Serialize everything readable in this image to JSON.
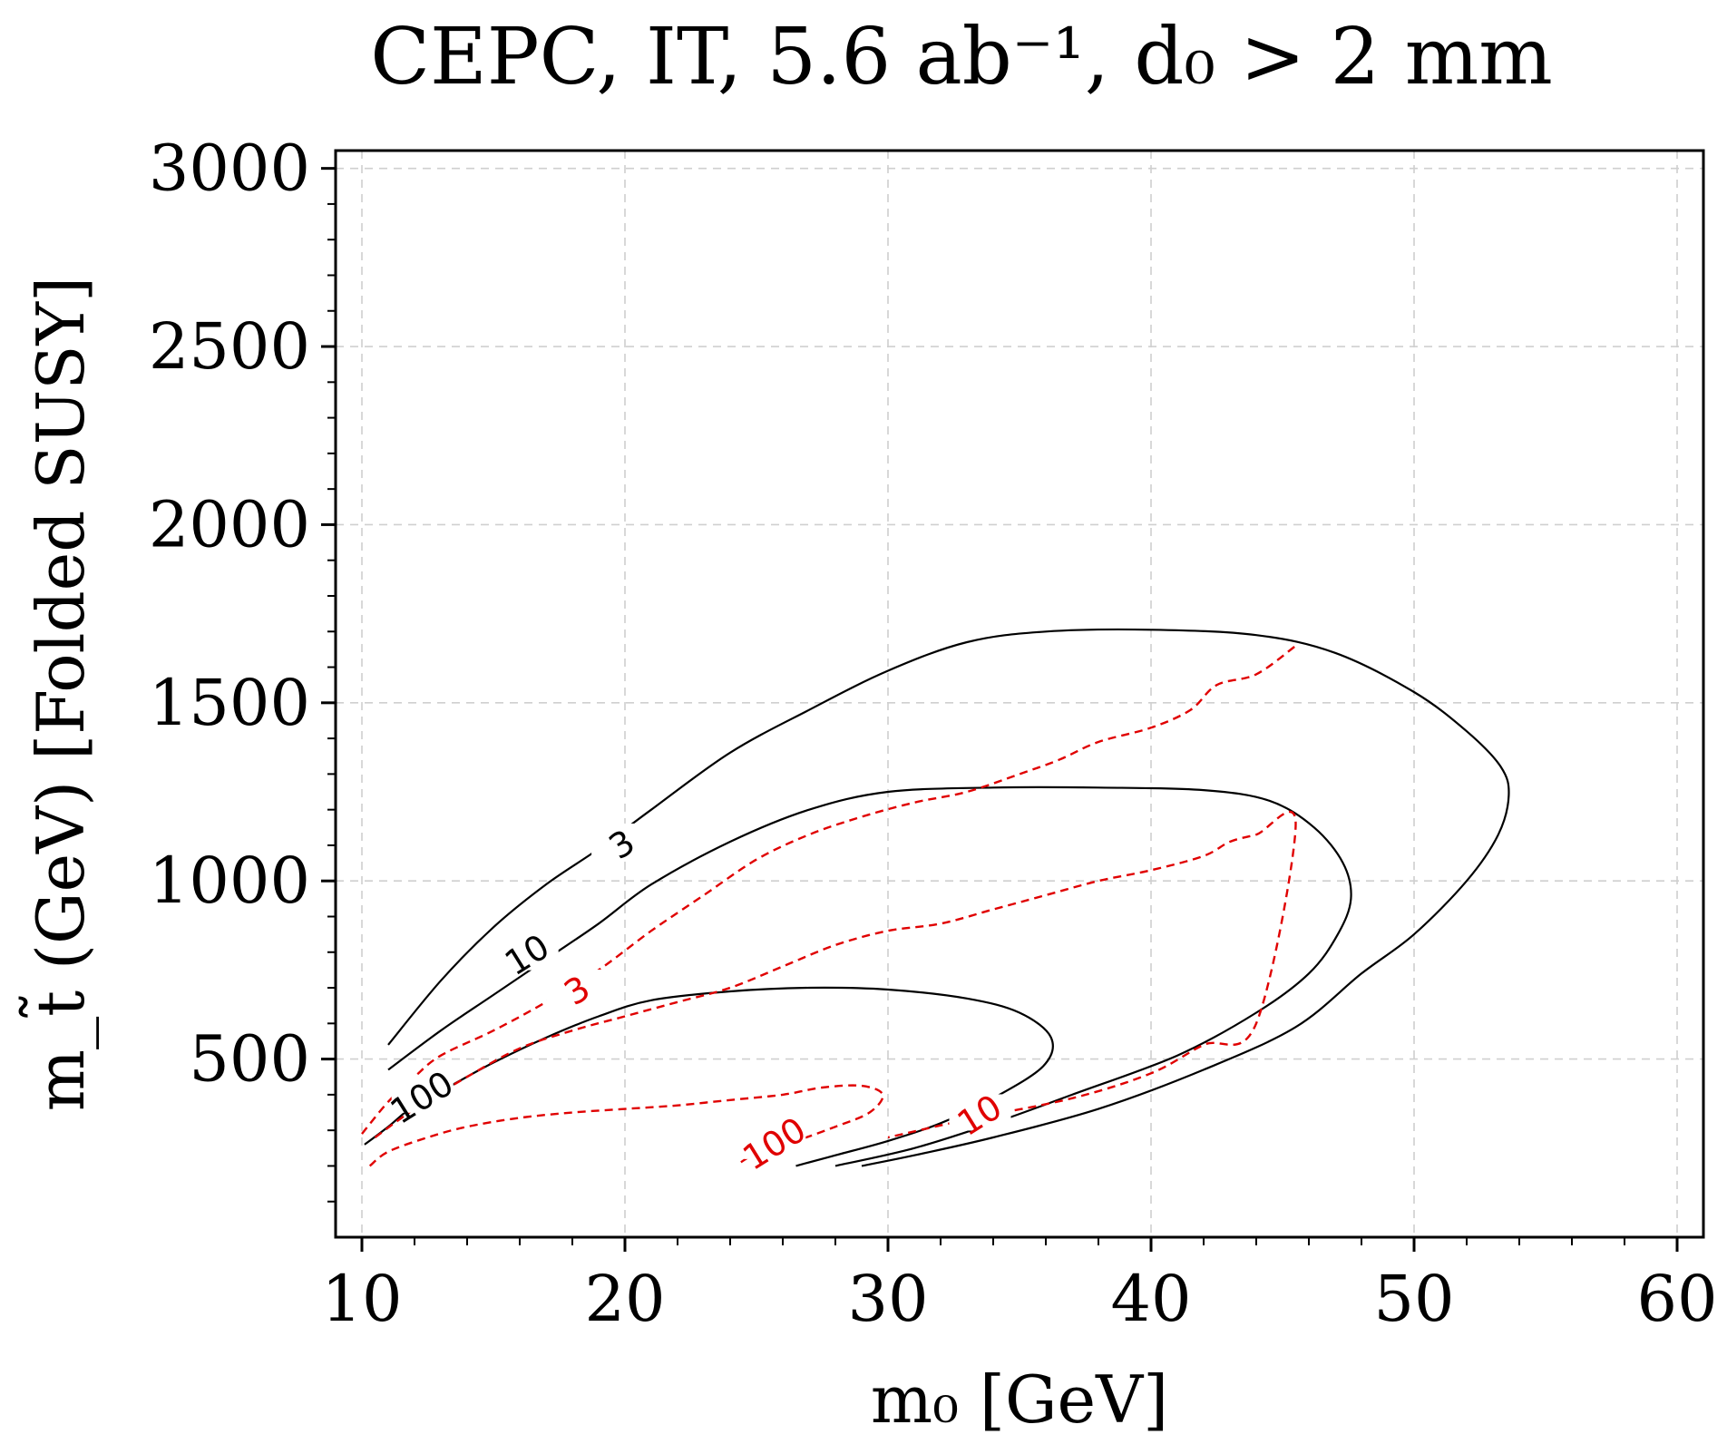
{
  "chart_data": {
    "type": "contour",
    "title": "CEPC, IT, 5.6 ab⁻¹, d₀ > 2 mm",
    "xlabel": "m₀ [GeV]",
    "ylabel": "m_t̃ (GeV)   [Folded SUSY]",
    "xlim": [
      9,
      61
    ],
    "ylim": [
      0,
      3050
    ],
    "xticks": [
      10,
      20,
      30,
      40,
      50,
      60
    ],
    "yticks": [
      500,
      1000,
      1500,
      2000,
      2500,
      3000
    ],
    "grid": true,
    "series": [
      {
        "name": "3",
        "color": "#000000",
        "style": "solid",
        "label": {
          "text": "3",
          "x": 19.9,
          "y": 1100
        },
        "points": [
          [
            11.0,
            540
          ],
          [
            13,
            720
          ],
          [
            15,
            870
          ],
          [
            17,
            990
          ],
          [
            19,
            1090
          ],
          [
            21,
            1200
          ],
          [
            24,
            1360
          ],
          [
            27,
            1480
          ],
          [
            30,
            1590
          ],
          [
            33,
            1670
          ],
          [
            36,
            1700
          ],
          [
            40,
            1705
          ],
          [
            44,
            1690
          ],
          [
            47,
            1640
          ],
          [
            50,
            1530
          ],
          [
            52,
            1420
          ],
          [
            53.3,
            1320
          ],
          [
            53.6,
            1240
          ],
          [
            53.2,
            1130
          ],
          [
            52,
            1000
          ],
          [
            50,
            850
          ],
          [
            48,
            740
          ],
          [
            45.5,
            590
          ],
          [
            42,
            470
          ],
          [
            38,
            360
          ],
          [
            34,
            280
          ],
          [
            31,
            230
          ],
          [
            29,
            200
          ]
        ]
      },
      {
        "name": "10",
        "color": "#000000",
        "style": "solid",
        "label": {
          "text": "10",
          "x": 16.3,
          "y": 790
        },
        "points": [
          [
            11.0,
            470
          ],
          [
            13,
            580
          ],
          [
            15,
            680
          ],
          [
            17,
            780
          ],
          [
            19,
            880
          ],
          [
            21,
            990
          ],
          [
            24,
            1110
          ],
          [
            27,
            1200
          ],
          [
            30,
            1250
          ],
          [
            34,
            1262
          ],
          [
            38,
            1262
          ],
          [
            42,
            1255
          ],
          [
            44.5,
            1225
          ],
          [
            46.2,
            1150
          ],
          [
            47.3,
            1050
          ],
          [
            47.6,
            950
          ],
          [
            47.1,
            850
          ],
          [
            46,
            740
          ],
          [
            44,
            630
          ],
          [
            41,
            510
          ],
          [
            37,
            400
          ],
          [
            34,
            320
          ],
          [
            31,
            250
          ],
          [
            28,
            200
          ]
        ]
      },
      {
        "name": "100",
        "color": "#000000",
        "style": "solid",
        "label": {
          "text": "100",
          "x": 12.3,
          "y": 390
        },
        "points": [
          [
            10.1,
            260
          ],
          [
            11,
            310
          ],
          [
            12,
            370
          ],
          [
            13.5,
            430
          ],
          [
            15,
            490
          ],
          [
            17,
            560
          ],
          [
            19,
            620
          ],
          [
            21,
            665
          ],
          [
            24,
            690
          ],
          [
            27,
            700
          ],
          [
            30,
            695
          ],
          [
            33,
            670
          ],
          [
            35,
            630
          ],
          [
            36.2,
            560
          ],
          [
            35.9,
            480
          ],
          [
            34,
            390
          ],
          [
            32,
            320
          ],
          [
            30,
            270
          ],
          [
            28,
            230
          ],
          [
            26.5,
            200
          ]
        ]
      },
      {
        "name": "3",
        "color": "#e00000",
        "style": "dashed",
        "label": {
          "text": "3",
          "x": 18.2,
          "y": 690
        },
        "points": [
          [
            10.0,
            290
          ],
          [
            11,
            380
          ],
          [
            12,
            450
          ],
          [
            13,
            510
          ],
          [
            15,
            580
          ],
          [
            17,
            660
          ],
          [
            19,
            750
          ],
          [
            21,
            860
          ],
          [
            23,
            960
          ],
          [
            25,
            1060
          ],
          [
            27,
            1130
          ],
          [
            29,
            1180
          ],
          [
            31,
            1220
          ],
          [
            33,
            1250
          ],
          [
            35,
            1300
          ],
          [
            36.5,
            1340
          ],
          [
            38,
            1390
          ],
          [
            40,
            1430
          ],
          [
            41.5,
            1480
          ],
          [
            42.5,
            1550
          ],
          [
            44,
            1580
          ],
          [
            45.5,
            1660
          ]
        ]
      },
      {
        "name": "10",
        "color": "#e00000",
        "style": "dashed",
        "label": {
          "text": "10",
          "x": 33.5,
          "y": 340
        },
        "points": [
          [
            10.5,
            280
          ],
          [
            12,
            360
          ],
          [
            14,
            450
          ],
          [
            16,
            530
          ],
          [
            18,
            580
          ],
          [
            20,
            620
          ],
          [
            22,
            660
          ],
          [
            24,
            700
          ],
          [
            26,
            760
          ],
          [
            28,
            820
          ],
          [
            30,
            860
          ],
          [
            32,
            880
          ],
          [
            34,
            920
          ],
          [
            36,
            960
          ],
          [
            38,
            1000
          ],
          [
            40,
            1030
          ],
          [
            42,
            1070
          ],
          [
            43,
            1110
          ],
          [
            44,
            1130
          ],
          [
            45.5,
            1160
          ],
          [
            44,
            600
          ],
          [
            42,
            540
          ],
          [
            40,
            460
          ],
          [
            37,
            390
          ],
          [
            33,
            330
          ],
          [
            30,
            280
          ]
        ]
      },
      {
        "name": "100",
        "color": "#e00000",
        "style": "dashed",
        "label": {
          "text": "100",
          "x": 25.7,
          "y": 260
        },
        "points": [
          [
            10.3,
            200
          ],
          [
            11,
            240
          ],
          [
            12.5,
            280
          ],
          [
            14,
            310
          ],
          [
            16,
            335
          ],
          [
            18,
            350
          ],
          [
            20,
            360
          ],
          [
            22,
            370
          ],
          [
            24,
            385
          ],
          [
            26,
            400
          ],
          [
            27.5,
            420
          ],
          [
            29,
            425
          ],
          [
            29.8,
            400
          ],
          [
            29.3,
            350
          ],
          [
            28,
            310
          ],
          [
            26.5,
            270
          ],
          [
            25,
            235
          ],
          [
            24.3,
            205
          ]
        ]
      }
    ]
  }
}
